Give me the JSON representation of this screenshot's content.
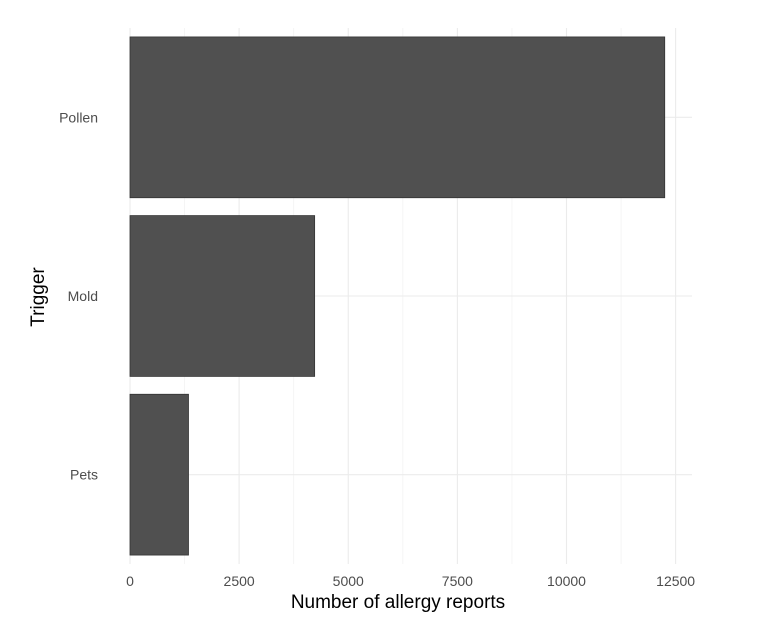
{
  "chart_data": {
    "type": "bar",
    "orientation": "horizontal",
    "categories": [
      "Pollen",
      "Mold",
      "Pets"
    ],
    "values": [
      12250,
      4230,
      1340
    ],
    "xlabel": "Number of allergy reports",
    "ylabel": "Trigger",
    "xlim": [
      0,
      12875
    ],
    "x_ticks": [
      0,
      2500,
      5000,
      7500,
      10000,
      12500
    ],
    "x_tick_labels": [
      "0",
      "2500",
      "5000",
      "7500",
      "10000",
      "12500"
    ],
    "grid": true,
    "bar_color": "#505050",
    "legend": "none"
  }
}
